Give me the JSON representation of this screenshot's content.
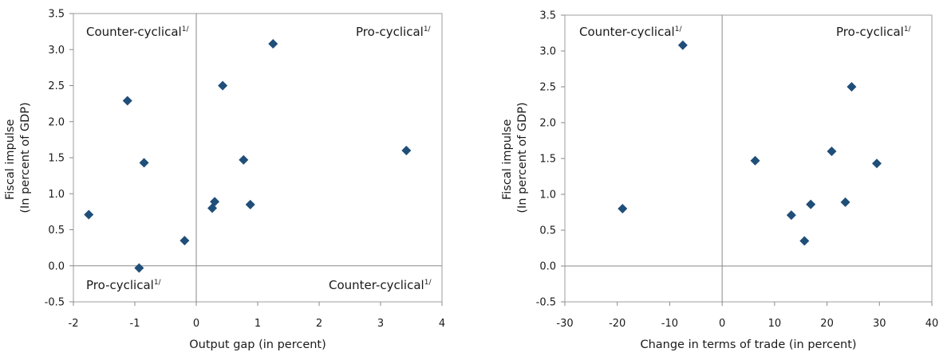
{
  "chart_data": [
    {
      "type": "scatter",
      "title": "",
      "xlabel": "Output gap (in percent)",
      "ylabel_lines": [
        "Fiscal impulse",
        "(In percent of GDP)"
      ],
      "xlim": [
        -2,
        4
      ],
      "ylim": [
        -0.5,
        3.5
      ],
      "xticks": [
        "-2",
        "-1",
        "0",
        "1",
        "2",
        "3",
        "4"
      ],
      "yticks": [
        "-0.5",
        "0.0",
        "0.5",
        "1.0",
        "1.5",
        "2.0",
        "2.5",
        "3.0",
        "3.5"
      ],
      "quadrant_labels": {
        "top_left": "Counter-cyclical",
        "top_right": "Pro-cyclical",
        "bottom_left": "Pro-cyclical",
        "bottom_right": "Counter-cyclical",
        "footnote_mark": "1/"
      },
      "marker_color": "#1f4e79",
      "grid": false,
      "points": [
        {
          "x": -1.75,
          "y": 0.71
        },
        {
          "x": -1.12,
          "y": 2.29
        },
        {
          "x": -0.85,
          "y": 1.43
        },
        {
          "x": -0.93,
          "y": -0.03
        },
        {
          "x": -0.19,
          "y": 0.35
        },
        {
          "x": 0.26,
          "y": 0.8
        },
        {
          "x": 0.3,
          "y": 0.89
        },
        {
          "x": 0.43,
          "y": 2.5
        },
        {
          "x": 0.77,
          "y": 1.47
        },
        {
          "x": 0.88,
          "y": 0.85
        },
        {
          "x": 1.25,
          "y": 3.08
        },
        {
          "x": 3.42,
          "y": 1.6
        }
      ]
    },
    {
      "type": "scatter",
      "title": "",
      "xlabel": "Change in terms of trade (in percent)",
      "ylabel_lines": [
        "Fiscal impulse",
        "(In percent of GDP)"
      ],
      "xlim": [
        -30,
        40
      ],
      "ylim": [
        -0.5,
        3.5
      ],
      "xticks": [
        "-30",
        "-20",
        "-10",
        "0",
        "10",
        "20",
        "30",
        "40"
      ],
      "yticks": [
        "-0.5",
        "0.0",
        "0.5",
        "1.0",
        "1.5",
        "2.0",
        "2.5",
        "3.0",
        "3.5"
      ],
      "quadrant_labels": {
        "top_left": "Counter-cyclical",
        "top_right": "Pro-cyclical",
        "footnote_mark": "1/"
      },
      "marker_color": "#1f4e79",
      "grid": false,
      "points": [
        {
          "x": -19.0,
          "y": 0.8
        },
        {
          "x": -7.5,
          "y": 3.08
        },
        {
          "x": 6.3,
          "y": 1.47
        },
        {
          "x": 13.2,
          "y": 0.71
        },
        {
          "x": 15.7,
          "y": 0.35
        },
        {
          "x": 16.9,
          "y": 0.86
        },
        {
          "x": 20.9,
          "y": 1.6
        },
        {
          "x": 23.5,
          "y": 0.89
        },
        {
          "x": 24.7,
          "y": 2.5
        },
        {
          "x": 29.5,
          "y": 1.43
        }
      ]
    }
  ]
}
